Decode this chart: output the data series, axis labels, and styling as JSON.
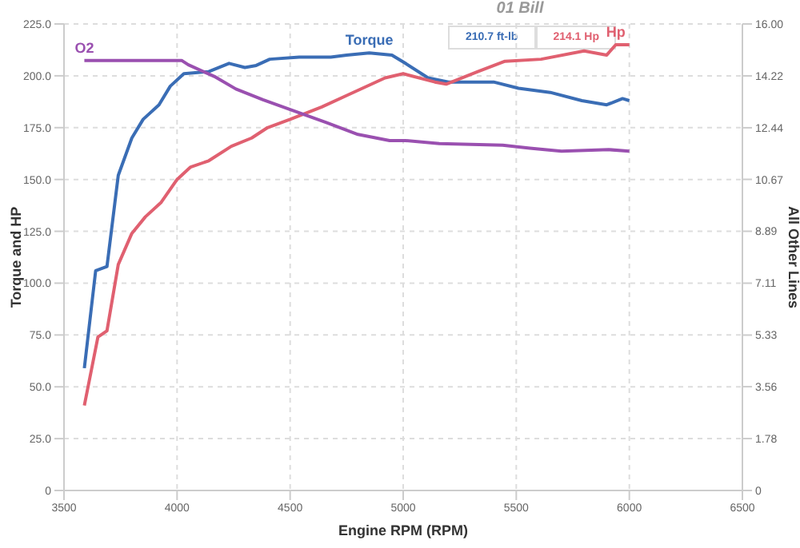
{
  "chart_data": {
    "type": "line",
    "title": "01 Bill",
    "xlabel": "Engine RPM (RPM)",
    "ylabel": "Torque and HP",
    "y2label": "All Other Lines",
    "xlim": [
      3500,
      6500
    ],
    "xticks": [
      3500,
      4000,
      4500,
      5000,
      5500,
      6000,
      6500
    ],
    "ylim": [
      0,
      225
    ],
    "yticks": [
      0,
      {
        "value": 25,
        "label": "25.0"
      },
      {
        "value": 50,
        "label": "50.0"
      },
      {
        "value": 75,
        "label": "75.0"
      },
      {
        "value": 100,
        "label": "100.0"
      },
      {
        "value": 125,
        "label": "125.0"
      },
      {
        "value": 150,
        "label": "150.0"
      },
      {
        "value": 175,
        "label": "175.0"
      },
      {
        "value": 200,
        "label": "200.0"
      },
      {
        "value": 225,
        "label": "225.0"
      }
    ],
    "y2lim": [
      0,
      16
    ],
    "y2ticks": [
      0,
      1.78,
      3.56,
      5.33,
      7.11,
      8.89,
      10.67,
      12.44,
      14.22,
      {
        "value": 16,
        "label": "16.00"
      }
    ],
    "grid": true,
    "legend": false,
    "line_style": "solid",
    "marker": "none",
    "annotations": [
      "210.7 ft-lb",
      "214.1 Hp"
    ],
    "series": [
      {
        "name": "Torque",
        "color": "#3a6db5",
        "x": [
          3590,
          3640,
          3690,
          3740,
          3800,
          3850,
          3920,
          3970,
          4030,
          4140,
          4230,
          4300,
          4350,
          4410,
          4540,
          4680,
          4750,
          4850,
          4950,
          5010,
          5110,
          5200,
          5300,
          5400,
          5510,
          5650,
          5790,
          5900,
          5970,
          6000
        ],
        "values": [
          59,
          106,
          108,
          152,
          170,
          179,
          186,
          195,
          201,
          202,
          206,
          204,
          205,
          208,
          209,
          209,
          210,
          211,
          210,
          206,
          199,
          197,
          197,
          197,
          194,
          192,
          188,
          186,
          189,
          188
        ]
      },
      {
        "name": "Hp",
        "color": "#e06070",
        "x": [
          3590,
          3650,
          3690,
          3740,
          3800,
          3860,
          3930,
          4000,
          4060,
          4140,
          4240,
          4330,
          4400,
          4500,
          4640,
          4760,
          4920,
          5000,
          5140,
          5190,
          5330,
          5450,
          5610,
          5800,
          5900,
          5940,
          6000
        ],
        "values": [
          41,
          74,
          77,
          109,
          124,
          132,
          139,
          150,
          156,
          159,
          166,
          170,
          175,
          179,
          185,
          191,
          199,
          201,
          197,
          196,
          202,
          207,
          208,
          212,
          210,
          215,
          215
        ]
      },
      {
        "name": "O2",
        "color": "#9a50b0",
        "axis": "y2",
        "x": [
          3590,
          4020,
          4050,
          4170,
          4260,
          4380,
          4510,
          4660,
          4800,
          4940,
          5010,
          5160,
          5440,
          5560,
          5700,
          5910,
          6000
        ],
        "values": [
          14.75,
          14.75,
          14.6,
          14.18,
          13.77,
          13.4,
          13.04,
          12.62,
          12.21,
          12,
          12,
          11.9,
          11.84,
          11.74,
          11.64,
          11.69,
          11.64
        ]
      }
    ]
  }
}
